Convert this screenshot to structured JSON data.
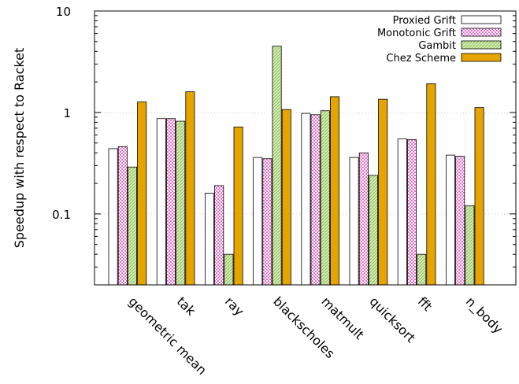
{
  "chart_data": {
    "type": "bar",
    "title": "",
    "xlabel": "",
    "ylabel": "Speedup with respect to Racket",
    "y_scale": "log",
    "ylim": [
      0.02,
      10
    ],
    "yticks": [
      {
        "value": 0.1,
        "label": "0.1"
      },
      {
        "value": 1,
        "label": "1"
      },
      {
        "value": 10,
        "label": "10"
      }
    ],
    "grid": "horizontal dotted at major ticks",
    "legend_position": "top-right",
    "categories": [
      "geometric mean",
      "tak",
      "ray",
      "blackscholes",
      "matmult",
      "quicksort",
      "fft",
      "n_body"
    ],
    "series": [
      {
        "name": "Proxied Grift",
        "color": "#ffffff",
        "pattern": "none",
        "values": [
          0.44,
          0.87,
          0.16,
          0.36,
          0.98,
          0.36,
          0.55,
          0.38
        ]
      },
      {
        "name": "Monotonic Grift",
        "color": "#e86cc8",
        "pattern": "checker",
        "values": [
          0.46,
          0.87,
          0.19,
          0.35,
          0.95,
          0.4,
          0.54,
          0.37
        ]
      },
      {
        "name": "Gambit",
        "color": "#b9dc8c",
        "pattern": "diagonal",
        "values": [
          0.29,
          0.82,
          0.04,
          4.5,
          1.04,
          0.24,
          0.04,
          0.12
        ]
      },
      {
        "name": "Chez Scheme",
        "color": "#e5a400",
        "pattern": "solid",
        "values": [
          1.27,
          1.6,
          0.72,
          1.07,
          1.43,
          1.35,
          1.92,
          1.12
        ]
      }
    ]
  }
}
